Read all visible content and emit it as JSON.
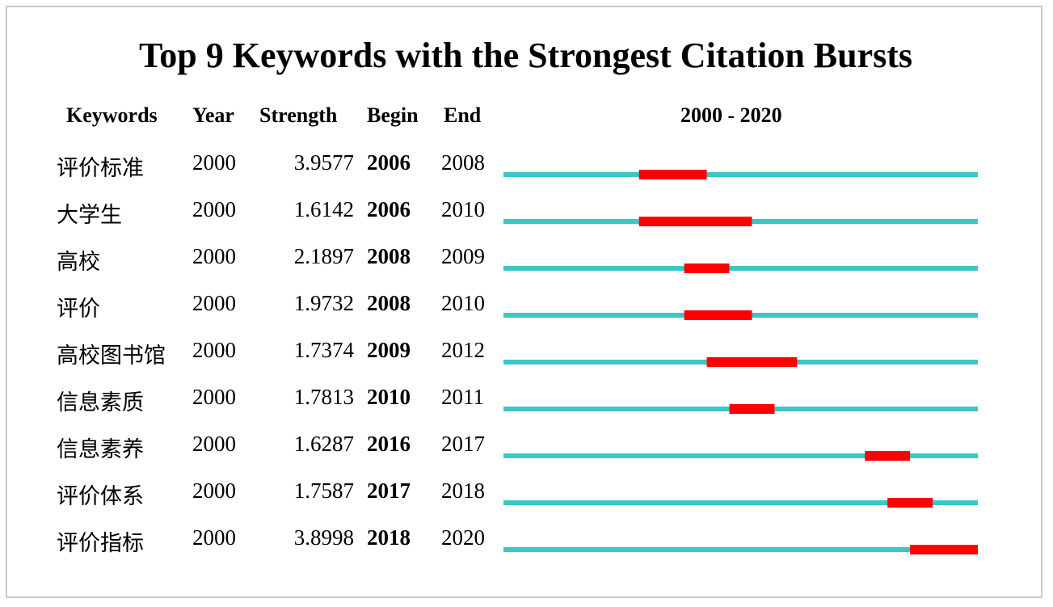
{
  "chart_data": {
    "type": "table",
    "title": "Top 9 Keywords with the Strongest Citation Bursts",
    "columns": [
      "Keywords",
      "Year",
      "Strength",
      "Begin",
      "End"
    ],
    "timeline_label": "2000 - 2020",
    "range": [
      2000,
      2020
    ],
    "colors": {
      "baseline": "#3cc6c6",
      "burst": "#ff0000"
    },
    "rows": [
      {
        "keyword": "评价标准",
        "year": "2000",
        "strength": "3.9577",
        "begin": "2006",
        "end": "2008"
      },
      {
        "keyword": "大学生",
        "year": "2000",
        "strength": "1.6142",
        "begin": "2006",
        "end": "2010"
      },
      {
        "keyword": "高校",
        "year": "2000",
        "strength": "2.1897",
        "begin": "2008",
        "end": "2009"
      },
      {
        "keyword": "评价",
        "year": "2000",
        "strength": "1.9732",
        "begin": "2008",
        "end": "2010"
      },
      {
        "keyword": "高校图书馆",
        "year": "2000",
        "strength": "1.7374",
        "begin": "2009",
        "end": "2012"
      },
      {
        "keyword": "信息素质",
        "year": "2000",
        "strength": "1.7813",
        "begin": "2010",
        "end": "2011"
      },
      {
        "keyword": "信息素养",
        "year": "2000",
        "strength": "1.6287",
        "begin": "2016",
        "end": "2017"
      },
      {
        "keyword": "评价体系",
        "year": "2000",
        "strength": "1.7587",
        "begin": "2017",
        "end": "2018"
      },
      {
        "keyword": "评价指标",
        "year": "2000",
        "strength": "3.8998",
        "begin": "2018",
        "end": "2020"
      }
    ]
  }
}
